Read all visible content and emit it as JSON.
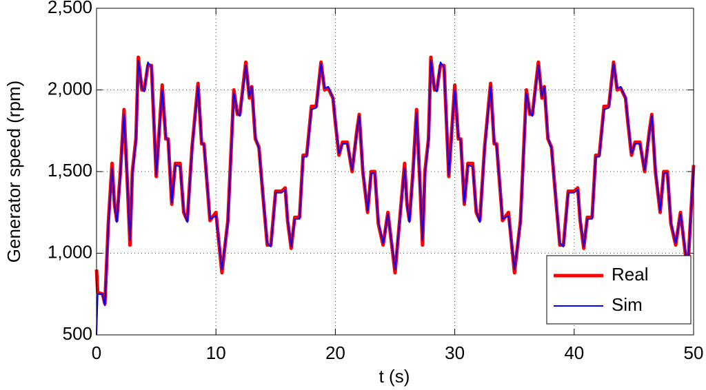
{
  "chart_data": {
    "type": "line",
    "xlabel": "t (s)",
    "ylabel": "Generator speed (rpm)",
    "xlim": [
      0,
      50
    ],
    "ylim": [
      500,
      2500
    ],
    "xticks": [
      0,
      10,
      20,
      30,
      40,
      50
    ],
    "yticks": [
      {
        "value": 500,
        "label": "500"
      },
      {
        "value": 1000,
        "label": "1,000"
      },
      {
        "value": 1500,
        "label": "1,500"
      },
      {
        "value": 2000,
        "label": "2,000"
      },
      {
        "value": 2500,
        "label": "2,500"
      }
    ],
    "grid": true,
    "legend": "lower right",
    "x": [
      0,
      0.1,
      0.5,
      0.7,
      1,
      1.3,
      1.5,
      1.7,
      2,
      2.3,
      2.6,
      2.8,
      3,
      3.3,
      3.5,
      3.8,
      4,
      4.3,
      4.6,
      5,
      5.5,
      5.8,
      6,
      6.3,
      6.6,
      7,
      7.3,
      7.6,
      8,
      8.5,
      8.8,
      9,
      9.5,
      10,
      10.5,
      11,
      11.5,
      11.8,
      12,
      12.5,
      12.8,
      13,
      13.3,
      13.6,
      14,
      14.3,
      14.6,
      15,
      15.5,
      15.8,
      16,
      16.3,
      16.6,
      17,
      17.3,
      17.6,
      18,
      18.4,
      18.8,
      19.1,
      19.4,
      19.8,
      20,
      20.3,
      20.6,
      21,
      21.4,
      21.8,
      22,
      22.3,
      22.7,
      23,
      23.3,
      23.6,
      24,
      24.4,
      25,
      25.8,
      26,
      26.2,
      26.5,
      26.8,
      27.1,
      27.3,
      27.5,
      27.8,
      28,
      28.3,
      28.5,
      28.8,
      29.1,
      29.5,
      30,
      30.3,
      30.5,
      30.8,
      31.1,
      31.5,
      31.8,
      32.1,
      32.5,
      33,
      33.3,
      33.5,
      34,
      34.5,
      35,
      35.5,
      36,
      36.3,
      36.5,
      37,
      37.3,
      37.5,
      37.8,
      38.1,
      38.5,
      38.8,
      39.1,
      39.5,
      40,
      40.3,
      40.5,
      40.8,
      41.1,
      41.5,
      41.8,
      42.1,
      42.5,
      42.9,
      43.3,
      43.6,
      43.9,
      44.3,
      44.5,
      44.8,
      45.1,
      45.5,
      45.9,
      46.3,
      46.5,
      46.8,
      47.2,
      47.5,
      47.8,
      48.1,
      48.5,
      48.9,
      49.5,
      50
    ],
    "series": [
      {
        "name": "Real",
        "color": "#ff0000",
        "values": [
          900,
          760,
          750,
          690,
          1200,
          1550,
          1300,
          1200,
          1500,
          1880,
          1400,
          1050,
          1500,
          1700,
          2200,
          2000,
          2000,
          2150,
          2150,
          1470,
          2030,
          1700,
          1700,
          1300,
          1550,
          1550,
          1250,
          1200,
          1650,
          2040,
          1670,
          1670,
          1200,
          1250,
          880,
          1200,
          2000,
          1850,
          1850,
          2170,
          1950,
          2020,
          1700,
          1650,
          1300,
          1050,
          1050,
          1380,
          1380,
          1400,
          1200,
          1030,
          1220,
          1220,
          1600,
          1600,
          1900,
          1900,
          2170,
          2000,
          2010,
          1950,
          1800,
          1600,
          1680,
          1680,
          1500,
          1750,
          1850,
          1500,
          1250,
          1500,
          1500,
          1180,
          1050,
          1250,
          880,
          1550,
          1300,
          1200,
          1500,
          1880,
          1400,
          1050,
          1500,
          1700,
          2200,
          2000,
          2000,
          2150,
          2150,
          1470,
          2030,
          1700,
          1700,
          1300,
          1550,
          1550,
          1250,
          1200,
          1650,
          2040,
          1670,
          1670,
          1200,
          1250,
          880,
          1200,
          2000,
          1850,
          1850,
          2170,
          1950,
          2020,
          1700,
          1650,
          1300,
          1050,
          1050,
          1380,
          1380,
          1400,
          1200,
          1030,
          1220,
          1220,
          1600,
          1600,
          1900,
          1900,
          2170,
          2000,
          2010,
          1950,
          1800,
          1600,
          1680,
          1680,
          1500,
          1750,
          1850,
          1500,
          1250,
          1500,
          1500,
          1180,
          1050,
          1250,
          880,
          1540
        ]
      },
      {
        "name": "Sim",
        "color": "#0000ff",
        "values": [
          500,
          750,
          750,
          680,
          1180,
          1520,
          1300,
          1190,
          1480,
          1850,
          1400,
          1080,
          1480,
          1690,
          2180,
          2010,
          1990,
          2170,
          2140,
          1480,
          2000,
          1710,
          1690,
          1310,
          1540,
          1530,
          1260,
          1190,
          1640,
          2020,
          1680,
          1660,
          1210,
          1230,
          900,
          1190,
          1980,
          1860,
          1840,
          2150,
          1960,
          2020,
          1710,
          1640,
          1300,
          1060,
          1040,
          1370,
          1370,
          1390,
          1210,
          1040,
          1210,
          1210,
          1590,
          1590,
          1880,
          1890,
          2160,
          2010,
          2020,
          1950,
          1810,
          1610,
          1670,
          1670,
          1510,
          1740,
          1840,
          1510,
          1260,
          1490,
          1490,
          1190,
          1060,
          1240,
          900,
          1520,
          1300,
          1190,
          1480,
          1860,
          1400,
          1080,
          1480,
          1690,
          2180,
          2010,
          1990,
          2170,
          2140,
          1480,
          2000,
          1710,
          1690,
          1310,
          1540,
          1530,
          1260,
          1190,
          1640,
          2020,
          1680,
          1660,
          1210,
          1230,
          900,
          1190,
          1980,
          1860,
          1840,
          2150,
          1960,
          2020,
          1710,
          1640,
          1300,
          1060,
          1040,
          1370,
          1370,
          1390,
          1210,
          1040,
          1210,
          1210,
          1590,
          1590,
          1880,
          1890,
          2160,
          2010,
          2020,
          1950,
          1810,
          1610,
          1670,
          1670,
          1510,
          1740,
          1840,
          1510,
          1260,
          1490,
          1490,
          1190,
          1060,
          1240,
          900,
          1530
        ]
      }
    ]
  }
}
